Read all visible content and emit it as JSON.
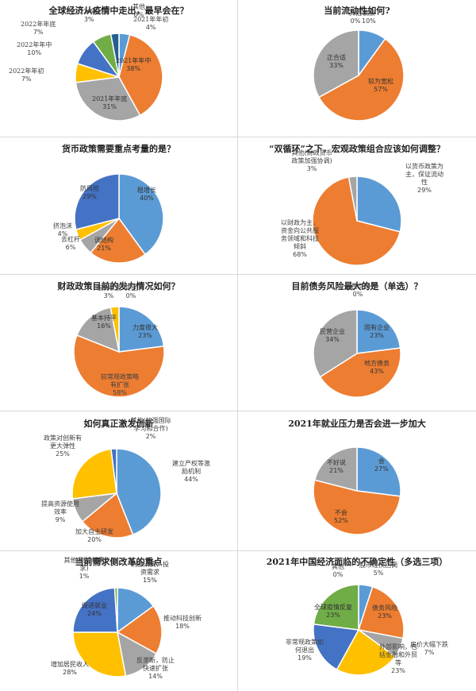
{
  "colors": {
    "blue": "#5b9bd5",
    "orange": "#ed7d31",
    "gray": "#a5a5a5",
    "yellow": "#ffc000",
    "darkblue": "#4472c4",
    "green": "#70ad47",
    "navy": "#255e91",
    "grid_line": "#d9d9d9"
  },
  "chart_data": [
    {
      "type": "pie",
      "title": "全球经济从疫情中走出，最早会在？",
      "categories": [
        "2021年年初",
        "2021年年中",
        "2021年年底",
        "2022年年初",
        "2022年年中",
        "2022年年底",
        "2023年以后",
        "其他"
      ],
      "values": [
        4,
        38,
        31,
        7,
        10,
        7,
        3,
        0
      ],
      "colors": [
        "#5b9bd5",
        "#ed7d31",
        "#a5a5a5",
        "#ffc000",
        "#4472c4",
        "#70ad47",
        "#255e91",
        "#9e480e"
      ]
    },
    {
      "type": "pie",
      "title": "当前流动性如何?",
      "categories": [
        "偏紧",
        "较为宽松",
        "正合适",
        "其他"
      ],
      "values": [
        10,
        57,
        33,
        0
      ],
      "colors": [
        "#5b9bd5",
        "#ed7d31",
        "#a5a5a5",
        "#ffc000"
      ]
    },
    {
      "type": "pie",
      "title": "货币政策需要重点考量的是？",
      "categories": [
        "稳增长",
        "调结构",
        "去杠杆",
        "挤泡沫",
        "防风险"
      ],
      "values": [
        40,
        21,
        6,
        4,
        29
      ],
      "colors": [
        "#5b9bd5",
        "#ed7d31",
        "#a5a5a5",
        "#ffc000",
        "#4472c4"
      ]
    },
    {
      "type": "pie",
      "title": "“双循环”之下，宏观政策组合应该如何调整？",
      "categories": [
        "以货币政策为主，保证流动性",
        "以财政为主，资金向公共服务领域和科技倾斜",
        "其他(财政货币政策加强协调)"
      ],
      "values": [
        29,
        68,
        3
      ],
      "colors": [
        "#5b9bd5",
        "#ed7d31",
        "#a5a5a5"
      ]
    },
    {
      "type": "pie",
      "title": "财政政策目前的发力情况如何？",
      "categories": [
        "力度很大",
        "较常规政策略有扩张",
        "基本持平",
        "有所收紧",
        "其他"
      ],
      "values": [
        23,
        58,
        16,
        3,
        0
      ],
      "colors": [
        "#5b9bd5",
        "#ed7d31",
        "#a5a5a5",
        "#ffc000",
        "#4472c4"
      ]
    },
    {
      "type": "pie",
      "title": "目前债务风险最大的是（单选）？",
      "categories": [
        "国有企业",
        "地方债务",
        "民营企业",
        "居民负债"
      ],
      "values": [
        23,
        43,
        34,
        0
      ],
      "colors": [
        "#5b9bd5",
        "#ed7d31",
        "#a5a5a5",
        "#ffc000"
      ]
    },
    {
      "type": "pie",
      "title": "如何真正激发创新",
      "categories": [
        "建立产权等激励机制",
        "加大自主研发",
        "提高资源使用效率",
        "政策对创新有更大弹性",
        "其他(加强国际学习和合作)"
      ],
      "values": [
        44,
        20,
        9,
        25,
        2
      ],
      "colors": [
        "#5b9bd5",
        "#ed7d31",
        "#a5a5a5",
        "#ffc000",
        "#4472c4"
      ]
    },
    {
      "type": "pie",
      "title": "2021年就业压力是否会进一步加大",
      "categories": [
        "会",
        "不会",
        "不好说"
      ],
      "values": [
        27,
        52,
        21
      ],
      "colors": [
        "#5b9bd5",
        "#ed7d31",
        "#a5a5a5"
      ]
    },
    {
      "type": "pie",
      "title": "当前需求侧改革的重点",
      "categories": [
        "刺激消费、投资需求",
        "推动科技创新",
        "反垄断，防止快速扩张",
        "增加居民收入",
        "促进就业",
        "其他(创造新需求)"
      ],
      "values": [
        15,
        18,
        14,
        28,
        24,
        1
      ],
      "colors": [
        "#5b9bd5",
        "#ed7d31",
        "#a5a5a5",
        "#ffc000",
        "#4472c4",
        "#70ad47"
      ]
    },
    {
      "type": "pie",
      "title": "2021年中国经济面临的不确定性（多选三项）",
      "categories": [
        "股市过快回调",
        "债务风险",
        "房价大幅下跌",
        "外部影响，包括金融和外贸等",
        "非常规政策如何退出",
        "全球疫情反复",
        "其他"
      ],
      "values": [
        5,
        23,
        7,
        23,
        19,
        23,
        0
      ],
      "colors": [
        "#5b9bd5",
        "#ed7d31",
        "#a5a5a5",
        "#ffc000",
        "#4472c4",
        "#70ad47",
        "#255e91"
      ]
    }
  ],
  "panels": [
    {
      "title": "全球经济从疫情中走出，最早会在？",
      "labels": [
        {
          "text": "2021年年初",
          "pct": "4%"
        },
        {
          "text": "2021年年中",
          "pct": "38%"
        },
        {
          "text": "2021年年底",
          "pct": "31%"
        },
        {
          "text": "2022年年初",
          "pct": "7%"
        },
        {
          "text": "2022年年中",
          "pct": "10%"
        },
        {
          "text": "2022年年底",
          "pct": "7%"
        },
        {
          "text": "2023年以后",
          "pct": "3%"
        },
        {
          "text": "其他",
          "pct": "0%"
        }
      ]
    },
    {
      "title": "当前流动性如何?",
      "labels": [
        {
          "text": "偏紧",
          "pct": "10%"
        },
        {
          "text": "较为宽松",
          "pct": "57%"
        },
        {
          "text": "正合适",
          "pct": "33%"
        },
        {
          "text": "其他",
          "pct": "0%"
        }
      ]
    },
    {
      "title": "货币政策需要重点考量的是？",
      "labels": [
        {
          "text": "稳增长",
          "pct": "40%"
        },
        {
          "text": "调结构",
          "pct": "21%"
        },
        {
          "text": "去杠杆",
          "pct": "6%"
        },
        {
          "text": "挤泡沫",
          "pct": "4%"
        },
        {
          "text": "防风险",
          "pct": "29%"
        }
      ]
    },
    {
      "title": "“双循环”之下，宏观政策组合应该如何调整？",
      "labels": [
        {
          "text": "以货币政策为\n主，保证流动\n性",
          "pct": "29%"
        },
        {
          "text": "以财政为主，\n资金向公共服\n务领域和科技\n倾斜",
          "pct": "68%"
        },
        {
          "text": "其他(财政货币\n政策加强协调)",
          "pct": "3%"
        }
      ]
    },
    {
      "title": "财政政策目前的发力情况如何？",
      "labels": [
        {
          "text": "力度很大",
          "pct": "23%"
        },
        {
          "text": "较常规政策略\n有扩张",
          "pct": "58%"
        },
        {
          "text": "基本持平",
          "pct": "16%"
        },
        {
          "text": "有所收紧",
          "pct": "3%"
        },
        {
          "text": "其他",
          "pct": "0%"
        }
      ]
    },
    {
      "title": "目前债务风险最大的是（单选）？",
      "labels": [
        {
          "text": "国有企业",
          "pct": "23%"
        },
        {
          "text": "地方债务",
          "pct": "43%"
        },
        {
          "text": "民营企业",
          "pct": "34%"
        },
        {
          "text": "居民负债",
          "pct": "0%"
        }
      ]
    },
    {
      "title": "如何真正激发创新",
      "labels": [
        {
          "text": "建立产权等激\n励机制",
          "pct": "44%"
        },
        {
          "text": "加大自主研发",
          "pct": "20%"
        },
        {
          "text": "提高资源使用\n效率",
          "pct": "9%"
        },
        {
          "text": "政策对创新有\n更大弹性",
          "pct": "25%"
        },
        {
          "text": "其他(加强国际\n学习和合作)",
          "pct": "2%"
        }
      ]
    },
    {
      "title": "2021年就业压力是否会进一步加大",
      "labels": [
        {
          "text": "会",
          "pct": "27%"
        },
        {
          "text": "不会",
          "pct": "52%"
        },
        {
          "text": "不好说",
          "pct": "21%"
        }
      ]
    },
    {
      "title": "当前需求侧改革的重点",
      "labels": [
        {
          "text": "刺激消费、投\n资需求",
          "pct": "15%"
        },
        {
          "text": "推动科技创新",
          "pct": "18%"
        },
        {
          "text": "反垄断，防止\n快速扩张",
          "pct": "14%"
        },
        {
          "text": "增加居民收入",
          "pct": "28%"
        },
        {
          "text": "促进就业",
          "pct": "24%"
        },
        {
          "text": "其他(创造新需\n求)",
          "pct": "1%"
        }
      ]
    },
    {
      "title": "2021年中国经济面临的不确定性（多选三项）",
      "labels": [
        {
          "text": "股市过快回调",
          "pct": "5%"
        },
        {
          "text": "债务风险",
          "pct": "23%"
        },
        {
          "text": "房价大幅下跌",
          "pct": "7%"
        },
        {
          "text": "外部影响，包\n括金融和外贸\n等",
          "pct": "23%"
        },
        {
          "text": "非常规政策如\n何退出",
          "pct": "19%"
        },
        {
          "text": "全球疫情反复",
          "pct": "23%"
        },
        {
          "text": "其他",
          "pct": "0%"
        }
      ]
    }
  ]
}
